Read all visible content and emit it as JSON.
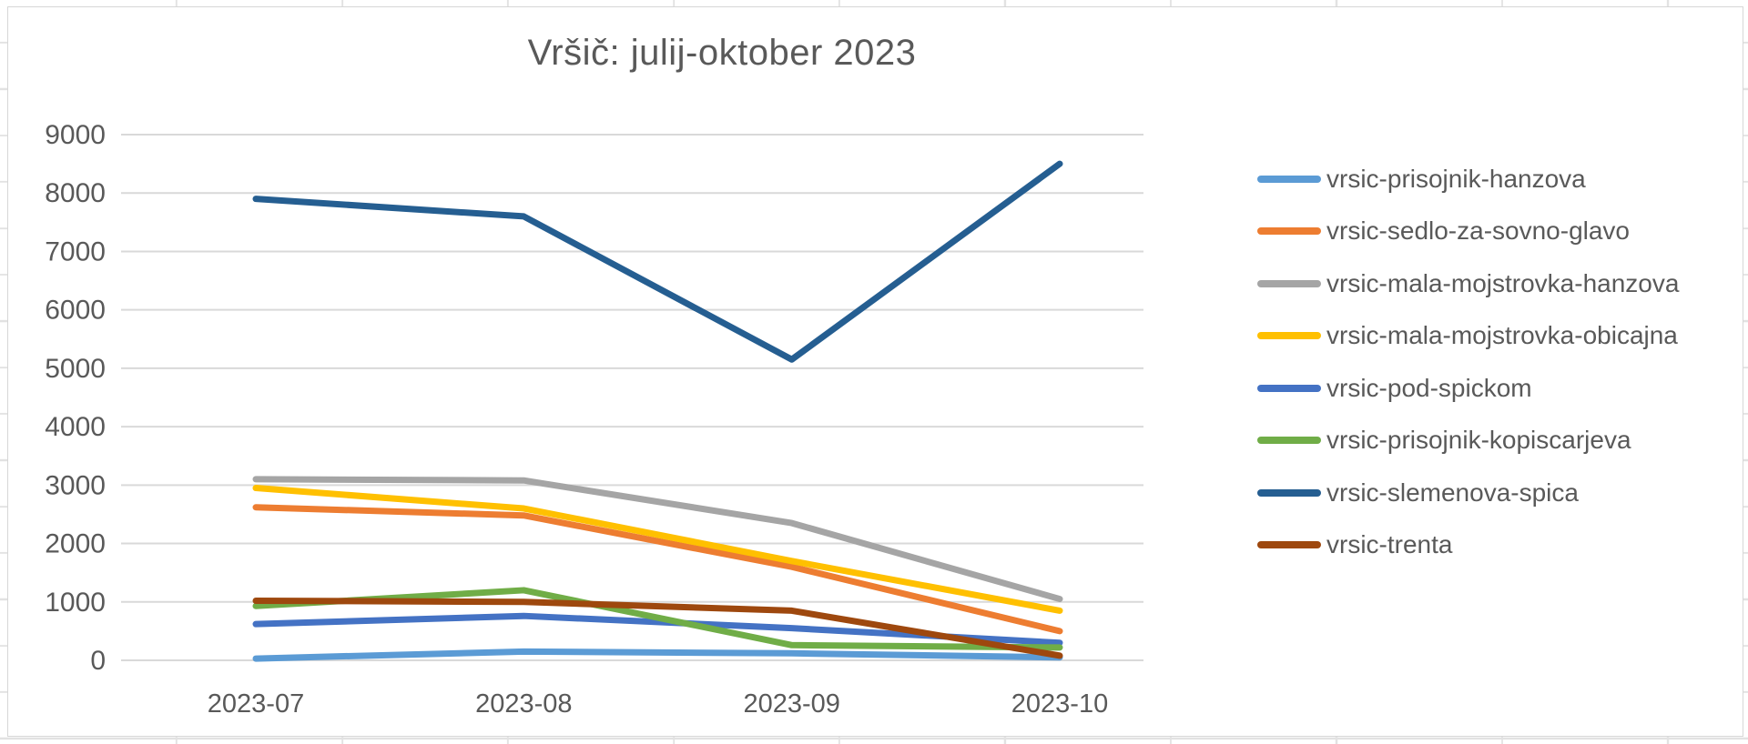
{
  "chart": {
    "title": "Vršič: julij-oktober 2023"
  },
  "chart_data": {
    "type": "line",
    "title": "Vršič: julij-oktober 2023",
    "categories": [
      "2023-07",
      "2023-08",
      "2023-09",
      "2023-10"
    ],
    "series": [
      {
        "name": "vrsic-prisojnik-hanzova",
        "color": "#5B9BD5",
        "values": [
          30,
          150,
          120,
          50
        ]
      },
      {
        "name": "vrsic-sedlo-za-sovno-glavo",
        "color": "#ED7D31",
        "values": [
          2620,
          2480,
          1600,
          500
        ]
      },
      {
        "name": "vrsic-mala-mojstrovka-hanzova",
        "color": "#A5A5A5",
        "values": [
          3100,
          3080,
          2350,
          1050
        ]
      },
      {
        "name": "vrsic-mala-mojstrovka-obicajna",
        "color": "#FFC000",
        "values": [
          2950,
          2600,
          1700,
          850
        ]
      },
      {
        "name": "vrsic-pod-spickom",
        "color": "#4472C4",
        "values": [
          620,
          760,
          550,
          300
        ]
      },
      {
        "name": "vrsic-prisojnik-kopiscarjeva",
        "color": "#70AD47",
        "values": [
          930,
          1200,
          260,
          220
        ]
      },
      {
        "name": "vrsic-slemenova-spica",
        "color": "#255E91",
        "values": [
          7900,
          7600,
          5150,
          8500
        ]
      },
      {
        "name": "vrsic-trenta",
        "color": "#9E480E",
        "values": [
          1020,
          1000,
          850,
          80
        ]
      }
    ],
    "xlabel": "",
    "ylabel": "",
    "ylim": [
      0,
      9000
    ],
    "y_ticks": [
      "0",
      "1000",
      "2000",
      "3000",
      "4000",
      "5000",
      "6000",
      "7000",
      "8000",
      "9000"
    ],
    "grid": true,
    "legend_position": "right",
    "colors": {
      "text": "#595959",
      "gridline": "#d9d9d9",
      "chart_border": "#d7d7d7",
      "background": "#ffffff"
    }
  }
}
